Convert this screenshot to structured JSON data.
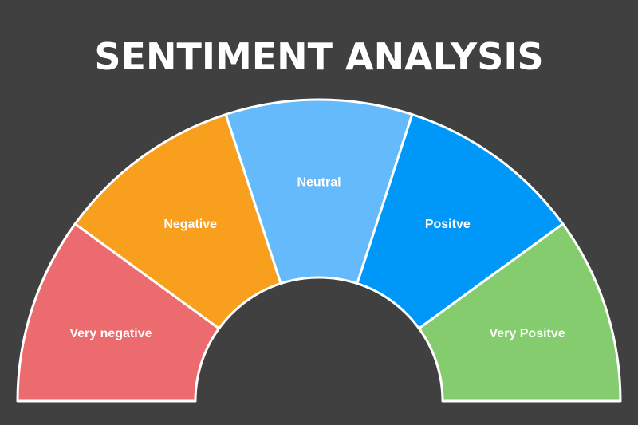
{
  "title": "SENTIMENT ANALYSIS",
  "segments": [
    {
      "label": "Very negative",
      "color": "#EC6B6E"
    },
    {
      "label": "Negative",
      "color": "#F99F1E"
    },
    {
      "label": "Neutral",
      "color": "#64BAFA"
    },
    {
      "label": "Positve",
      "color": "#0098F8"
    },
    {
      "label": "Very Positve",
      "color": "#84CC6D"
    }
  ],
  "background_color": "#404040",
  "divider_color": "#FFFFFF"
}
